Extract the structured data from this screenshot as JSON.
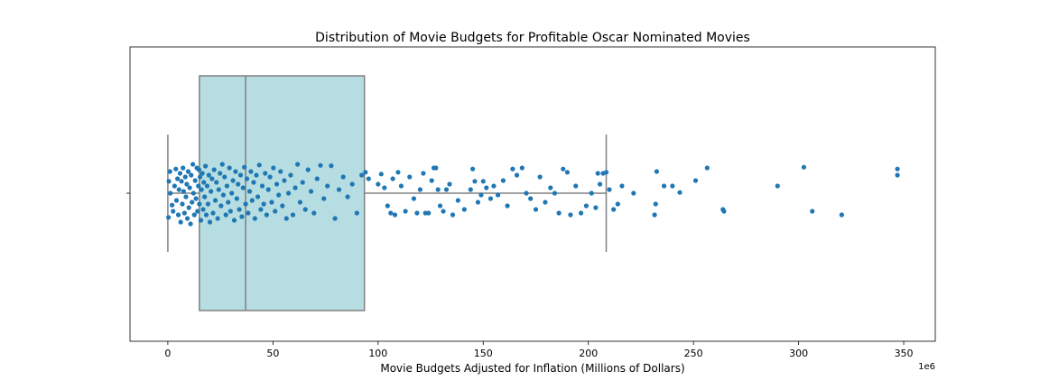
{
  "chart_data": {
    "type": "box",
    "title": "Distribution of Movie Budgets for Profitable Oscar Nominated Movies",
    "xlabel": "Movie Budgets Adjusted for Inflation (Millions of Dollars)",
    "x_offset_text": "1e6",
    "xlim": [
      -18,
      365
    ],
    "xticks": [
      0,
      50,
      100,
      150,
      200,
      250,
      300,
      350
    ],
    "grid": false,
    "box": {
      "whisker_low": 0,
      "q1": 15,
      "median": 37,
      "q3": 93.5,
      "whisker_high": 208.5,
      "fill_color": "#b6dde1",
      "line_color": "#808080"
    },
    "points_color": "#1f77b4",
    "points": [
      [
        0.5,
        0.33
      ],
      [
        0.3,
        -0.67
      ],
      [
        1.2,
        0.0
      ],
      [
        2.0,
        -0.33
      ],
      [
        1.0,
        0.6
      ],
      [
        2.5,
        -0.5
      ],
      [
        3.2,
        0.2
      ],
      [
        3.8,
        0.67
      ],
      [
        4.1,
        -0.2
      ],
      [
        4.6,
        0.4
      ],
      [
        5.0,
        -0.6
      ],
      [
        5.3,
        0.1
      ],
      [
        5.8,
        0.55
      ],
      [
        6.1,
        -0.8
      ],
      [
        6.5,
        0.33
      ],
      [
        6.9,
        -0.3
      ],
      [
        7.2,
        0.7
      ],
      [
        7.5,
        0.05
      ],
      [
        7.9,
        -0.55
      ],
      [
        8.3,
        0.45
      ],
      [
        8.6,
        -0.1
      ],
      [
        9.0,
        0.25
      ],
      [
        9.3,
        -0.7
      ],
      [
        9.7,
        0.6
      ],
      [
        10.0,
        -0.4
      ],
      [
        10.4,
        0.15
      ],
      [
        10.8,
        -0.85
      ],
      [
        11.1,
        0.5
      ],
      [
        11.5,
        -0.25
      ],
      [
        11.9,
        0.8
      ],
      [
        12.2,
        0.0
      ],
      [
        12.6,
        -0.6
      ],
      [
        13.0,
        0.35
      ],
      [
        13.4,
        -0.15
      ],
      [
        13.8,
        0.7
      ],
      [
        14.1,
        -0.5
      ],
      [
        14.5,
        0.2
      ],
      [
        14.8,
        0.65
      ],
      [
        15.0,
        -0.3
      ],
      [
        15.3,
        0.45
      ],
      [
        15.7,
        -0.75
      ],
      [
        16.0,
        0.1
      ],
      [
        16.4,
        0.55
      ],
      [
        16.8,
        -0.45
      ],
      [
        17.1,
        0.3
      ],
      [
        17.5,
        -0.1
      ],
      [
        17.9,
        0.75
      ],
      [
        18.3,
        -0.6
      ],
      [
        18.7,
        0.2
      ],
      [
        19.1,
        -0.3
      ],
      [
        19.5,
        0.5
      ],
      [
        20.0,
        -0.8
      ],
      [
        20.5,
        0.05
      ],
      [
        21.0,
        0.4
      ],
      [
        21.5,
        -0.55
      ],
      [
        22.0,
        0.65
      ],
      [
        22.6,
        -0.2
      ],
      [
        23.1,
        0.3
      ],
      [
        23.7,
        -0.7
      ],
      [
        24.2,
        0.1
      ],
      [
        24.8,
        0.55
      ],
      [
        25.3,
        -0.35
      ],
      [
        25.9,
        0.8
      ],
      [
        26.4,
        -0.05
      ],
      [
        27.0,
        0.45
      ],
      [
        27.6,
        -0.6
      ],
      [
        28.1,
        0.2
      ],
      [
        28.7,
        -0.25
      ],
      [
        29.3,
        0.7
      ],
      [
        29.8,
        -0.5
      ],
      [
        30.4,
        0.0
      ],
      [
        31.0,
        0.35
      ],
      [
        31.6,
        -0.75
      ],
      [
        32.2,
        0.6
      ],
      [
        32.8,
        -0.15
      ],
      [
        33.4,
        0.25
      ],
      [
        34.0,
        -0.45
      ],
      [
        34.6,
        0.5
      ],
      [
        35.2,
        -0.65
      ],
      [
        35.8,
        0.15
      ],
      [
        36.4,
        0.72
      ],
      [
        37.0,
        -0.3
      ],
      [
        37.6,
        0.4
      ],
      [
        38.2,
        -0.55
      ],
      [
        38.9,
        0.05
      ],
      [
        39.5,
        0.6
      ],
      [
        40.1,
        -0.2
      ],
      [
        40.8,
        0.3
      ],
      [
        41.4,
        -0.7
      ],
      [
        42.1,
        0.5
      ],
      [
        42.8,
        -0.1
      ],
      [
        43.5,
        0.78
      ],
      [
        44.2,
        -0.45
      ],
      [
        44.9,
        0.2
      ],
      [
        45.6,
        -0.3
      ],
      [
        46.3,
        0.55
      ],
      [
        47.0,
        -0.6
      ],
      [
        47.8,
        0.1
      ],
      [
        48.6,
        0.45
      ],
      [
        49.4,
        -0.25
      ],
      [
        50.2,
        0.7
      ],
      [
        51.0,
        -0.5
      ],
      [
        51.8,
        0.25
      ],
      [
        52.7,
        -0.05
      ],
      [
        53.6,
        0.6
      ],
      [
        54.5,
        -0.35
      ],
      [
        55.4,
        0.35
      ],
      [
        56.4,
        -0.7
      ],
      [
        57.4,
        0.0
      ],
      [
        58.4,
        0.5
      ],
      [
        59.5,
        -0.6
      ],
      [
        60.6,
        0.15
      ],
      [
        61.7,
        0.8
      ],
      [
        62.9,
        -0.25
      ],
      [
        64.1,
        0.3
      ],
      [
        65.4,
        -0.45
      ],
      [
        66.7,
        0.65
      ],
      [
        68.1,
        0.05
      ],
      [
        69.5,
        -0.55
      ],
      [
        71.0,
        0.4
      ],
      [
        72.6,
        0.77
      ],
      [
        74.2,
        -0.15
      ],
      [
        75.9,
        0.2
      ],
      [
        77.7,
        0.76
      ],
      [
        79.5,
        -0.7
      ],
      [
        81.4,
        0.1
      ],
      [
        83.4,
        0.45
      ],
      [
        85.5,
        -0.1
      ],
      [
        87.7,
        0.25
      ],
      [
        89.9,
        -0.55
      ],
      [
        92.2,
        0.5
      ],
      [
        94.0,
        0.58
      ],
      [
        95.5,
        0.4
      ],
      [
        100.0,
        0.25
      ],
      [
        101.5,
        0.53
      ],
      [
        103.0,
        0.15
      ],
      [
        104.5,
        -0.35
      ],
      [
        106.0,
        -0.55
      ],
      [
        107.0,
        0.4
      ],
      [
        108.0,
        -0.6
      ],
      [
        109.5,
        0.58
      ],
      [
        111.0,
        0.2
      ],
      [
        113.0,
        -0.5
      ],
      [
        115.0,
        0.45
      ],
      [
        117.0,
        -0.15
      ],
      [
        118.5,
        -0.55
      ],
      [
        120.0,
        0.1
      ],
      [
        121.5,
        0.55
      ],
      [
        122.5,
        -0.55
      ],
      [
        124.0,
        -0.55
      ],
      [
        125.5,
        0.35
      ],
      [
        126.5,
        0.7
      ],
      [
        127.5,
        0.7
      ],
      [
        128.5,
        0.1
      ],
      [
        129.5,
        -0.35
      ],
      [
        131.0,
        -0.5
      ],
      [
        132.5,
        0.1
      ],
      [
        134.0,
        0.25
      ],
      [
        135.5,
        -0.6
      ],
      [
        138.0,
        -0.2
      ],
      [
        141.0,
        -0.45
      ],
      [
        144.0,
        0.1
      ],
      [
        145.0,
        0.67
      ],
      [
        146.0,
        0.33
      ],
      [
        147.5,
        -0.25
      ],
      [
        149.0,
        -0.05
      ],
      [
        150.0,
        0.33
      ],
      [
        151.5,
        0.15
      ],
      [
        153.5,
        -0.15
      ],
      [
        155.0,
        0.2
      ],
      [
        157.0,
        -0.05
      ],
      [
        159.5,
        0.35
      ],
      [
        161.5,
        -0.35
      ],
      [
        164.0,
        0.67
      ],
      [
        166.0,
        0.5
      ],
      [
        168.5,
        0.7
      ],
      [
        170.5,
        0.0
      ],
      [
        172.5,
        -0.15
      ],
      [
        175.0,
        -0.45
      ],
      [
        177.0,
        0.45
      ],
      [
        179.5,
        -0.25
      ],
      [
        182.0,
        0.15
      ],
      [
        184.0,
        0.0
      ],
      [
        186.0,
        -0.55
      ],
      [
        188.0,
        0.67
      ],
      [
        190.0,
        0.58
      ],
      [
        191.5,
        -0.6
      ],
      [
        194.0,
        0.2
      ],
      [
        196.5,
        -0.55
      ],
      [
        199.0,
        -0.35
      ],
      [
        201.5,
        0.0
      ],
      [
        203.5,
        -0.4
      ],
      [
        204.5,
        0.55
      ],
      [
        205.5,
        0.25
      ],
      [
        207.0,
        0.55
      ],
      [
        208.5,
        0.58
      ],
      [
        210.0,
        0.1
      ],
      [
        212.0,
        -0.45
      ],
      [
        214.0,
        -0.3
      ],
      [
        216.0,
        0.2
      ],
      [
        221.5,
        0.0
      ],
      [
        231.5,
        -0.6
      ],
      [
        232.0,
        -0.3
      ],
      [
        232.5,
        0.6
      ],
      [
        236.0,
        0.2
      ],
      [
        240.0,
        0.2
      ],
      [
        243.5,
        0.02
      ],
      [
        251.0,
        0.35
      ],
      [
        256.5,
        0.7
      ],
      [
        264.0,
        -0.45
      ],
      [
        264.5,
        -0.5
      ],
      [
        290.0,
        0.2
      ],
      [
        302.5,
        0.72
      ],
      [
        306.5,
        -0.5
      ],
      [
        320.5,
        -0.6
      ],
      [
        347.0,
        0.67
      ],
      [
        347.0,
        0.5
      ]
    ]
  }
}
